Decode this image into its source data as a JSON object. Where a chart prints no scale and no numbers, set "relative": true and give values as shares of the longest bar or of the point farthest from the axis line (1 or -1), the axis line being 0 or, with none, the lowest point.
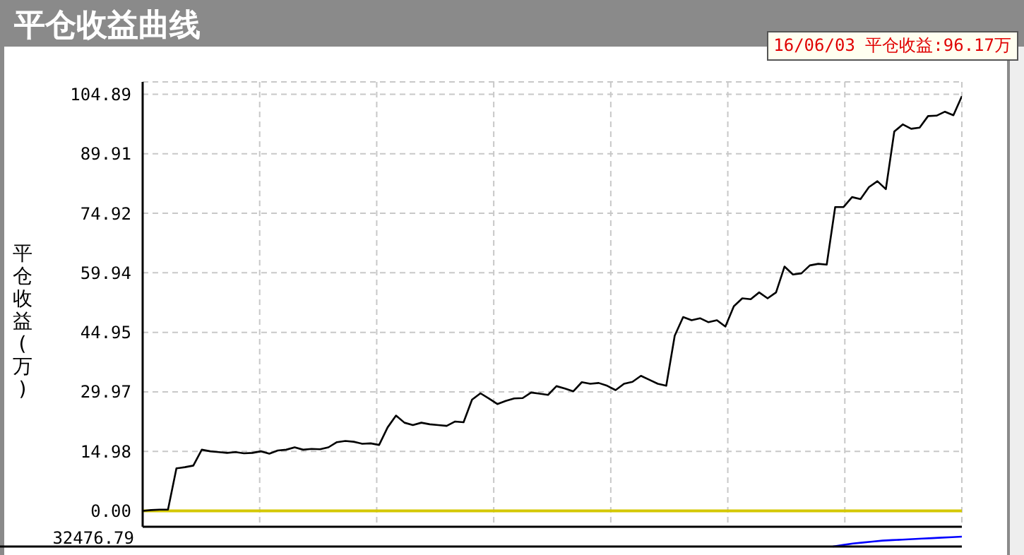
{
  "chart_data": [
    {
      "type": "line",
      "title": "平仓收益曲线",
      "ylabel": "平仓收益(万)",
      "annotations": [
        "16/06/03 平仓收益:96.17万"
      ],
      "categories": [
        null,
        null,
        null,
        null,
        null,
        null,
        null,
        null,
        null,
        null,
        null,
        null,
        null,
        null,
        null,
        null,
        null,
        null,
        null,
        null,
        null,
        null,
        null,
        null,
        null,
        null,
        null,
        null,
        null,
        null,
        null,
        null,
        null,
        null,
        null,
        null,
        null,
        null,
        null,
        null,
        null,
        null,
        null,
        null,
        null,
        null,
        null,
        null,
        null,
        null,
        null,
        null,
        null,
        null,
        null,
        null,
        null,
        null,
        null,
        null,
        null,
        null,
        null,
        null,
        null,
        null,
        null,
        null,
        null,
        null,
        null,
        null,
        null,
        null,
        null,
        null,
        null,
        null,
        null,
        null,
        null,
        null,
        null,
        null,
        null,
        null,
        null,
        null,
        null,
        null,
        null,
        null,
        null,
        null,
        null,
        null,
        null,
        null
      ],
      "series": [
        {
          "color": "#000000",
          "values": [
            0,
            0.2,
            0.3,
            0.3,
            10.7,
            11,
            11.4,
            15.4,
            15,
            14.8,
            14.6,
            14.8,
            14.5,
            14.6,
            15,
            14.4,
            15.2,
            15.4,
            16,
            15.4,
            15.6,
            15.5,
            16,
            17.3,
            17.6,
            17.4,
            16.9,
            17,
            16.6,
            21,
            24,
            22.2,
            21.6,
            22.2,
            21.8,
            21.6,
            21.4,
            22.5,
            22.3,
            28,
            29.6,
            28.3,
            26.9,
            27.7,
            28.3,
            28.4,
            29.8,
            29.5,
            29.2,
            31.4,
            30.8,
            30.1,
            32.4,
            32,
            32.2,
            31.5,
            30.4,
            32,
            32.5,
            34,
            33,
            32,
            31.5,
            44.1,
            48.8,
            48,
            48.5,
            47.5,
            48,
            46.4,
            51.5,
            53.5,
            53.3,
            55,
            53.5,
            55,
            61.5,
            59.5,
            59.8,
            61.8,
            62.2,
            62,
            76.5,
            76.5,
            79,
            78.5,
            81.5,
            83,
            81,
            95.5,
            97.3,
            96.2,
            96.5,
            99.4,
            99.5,
            100.5,
            99.6,
            104.4
          ]
        }
      ],
      "ylim": [
        -4,
        108
      ],
      "yticks": [
        {
          "value": 0,
          "label": "0.00"
        },
        14.98,
        29.97,
        44.95,
        59.94,
        74.92,
        89.91,
        104.89
      ],
      "ref_lines": [
        {
          "axis": "y",
          "value": 0,
          "color": "#d4c800"
        }
      ],
      "grid": true,
      "marker": "none",
      "tick_labels": "y"
    },
    {
      "type": "line",
      "relative": true,
      "annotations": [
        "32476.79"
      ],
      "categories": [
        null,
        null,
        null,
        null,
        null,
        null,
        null,
        null,
        null,
        null,
        null,
        null,
        null,
        null,
        null,
        null,
        null,
        null,
        null,
        null,
        null,
        null,
        null,
        null,
        null,
        null,
        null,
        null,
        null,
        null,
        null,
        null,
        null,
        null,
        null,
        null,
        null,
        null,
        null,
        null,
        null,
        null,
        null,
        null,
        null,
        null,
        null,
        null,
        null,
        null,
        null,
        null,
        null,
        null,
        null,
        null,
        null,
        null,
        null,
        null,
        null,
        null,
        null,
        null,
        null,
        null,
        null,
        null,
        null,
        null,
        null,
        null,
        null,
        null,
        null,
        null,
        null,
        null,
        null,
        null,
        null,
        null,
        null,
        null,
        null,
        null,
        null,
        null,
        null,
        null,
        null,
        null,
        null,
        null,
        null,
        null,
        null,
        null
      ],
      "series": [
        {
          "color": "#0000ff",
          "values": [
            null,
            null,
            null,
            null,
            null,
            null,
            null,
            null,
            null,
            null,
            null,
            null,
            null,
            null,
            null,
            null,
            null,
            null,
            null,
            null,
            null,
            null,
            null,
            null,
            null,
            null,
            null,
            null,
            null,
            null,
            null,
            null,
            null,
            null,
            null,
            null,
            null,
            null,
            null,
            null,
            null,
            null,
            null,
            null,
            null,
            null,
            null,
            null,
            null,
            null,
            null,
            null,
            null,
            null,
            null,
            null,
            null,
            null,
            null,
            null,
            null,
            null,
            null,
            null,
            null,
            null,
            null,
            null,
            null,
            null,
            null,
            null,
            null,
            null,
            null,
            null,
            null,
            null,
            null,
            null,
            null,
            null,
            null,
            null,
            0,
            0.15,
            0.3,
            0.4,
            0.5,
            0.6,
            0.65,
            0.7,
            0.75,
            0.8,
            0.85,
            0.9,
            0.95,
            1
          ]
        }
      ],
      "marker": "none"
    }
  ]
}
